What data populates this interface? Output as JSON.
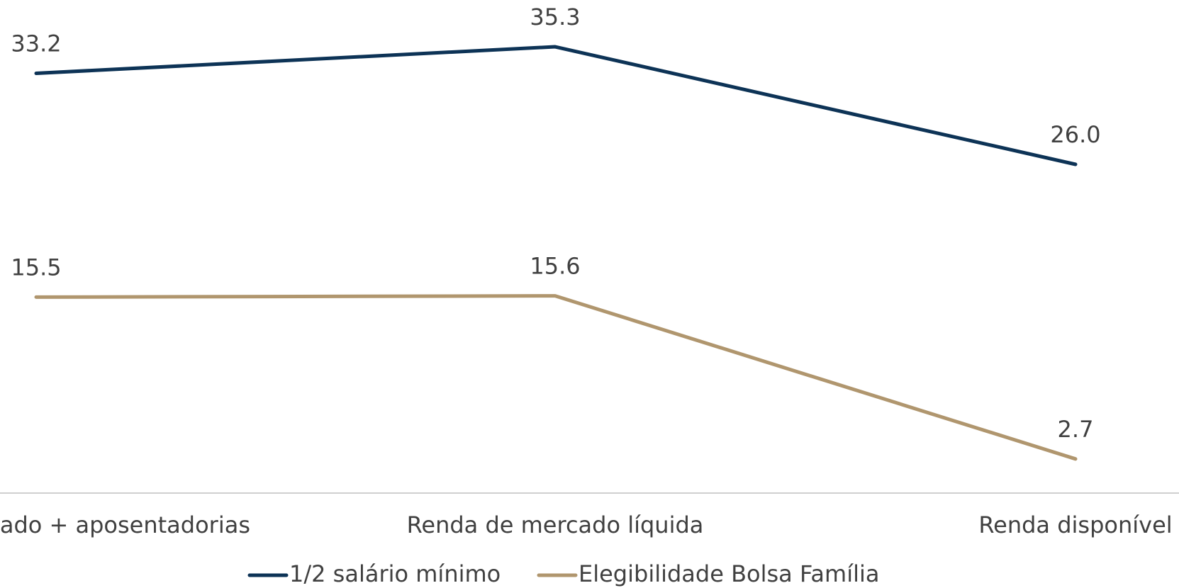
{
  "chart_data": {
    "type": "line",
    "categories": [
      "ado + aposentadorias",
      "Renda de mercado líquida",
      "Renda disponível"
    ],
    "series": [
      {
        "name": "1/2 salário mínimo",
        "color": "#0d3356",
        "values": [
          33.2,
          35.3,
          26.0
        ],
        "value_labels": [
          "33.2",
          "35.3",
          "26.0"
        ]
      },
      {
        "name": "Elegibilidade Bolsa Família",
        "color": "#b0966e",
        "values": [
          15.5,
          15.6,
          2.7
        ]
      }
    ],
    "ylim": [
      0,
      39
    ]
  }
}
